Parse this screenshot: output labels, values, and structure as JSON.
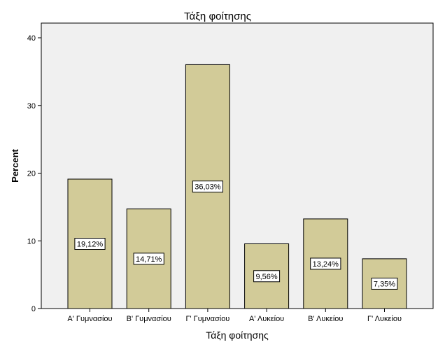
{
  "chart_data": {
    "type": "bar",
    "title": "Τάξη φοίτησης",
    "xlabel": "Τάξη φοίτησης",
    "ylabel": "Percent",
    "categories": [
      "Α' Γυμνασίου",
      "Β' Γυμνασίου",
      "Γ' Γυμνασίου",
      "Α' Λυκείου",
      "Β' Λυκείου",
      "Γ' Λυκείου"
    ],
    "values": [
      19.12,
      14.71,
      36.03,
      9.56,
      13.24,
      7.35
    ],
    "data_labels": [
      "19,12%",
      "14,71%",
      "36,03%",
      "9,56%",
      "13,24%",
      "7,35%"
    ],
    "ylim": [
      0,
      40
    ],
    "yticks": [
      0,
      10,
      20,
      30,
      40
    ],
    "ytick_labels": [
      "0",
      "10",
      "20",
      "30",
      "40"
    ],
    "grid": false,
    "colors": {
      "bar_fill": "#d2cb98",
      "bar_stroke": "#000000",
      "plot_background": "#f0f0f0",
      "label_box_fill": "#ffffff"
    }
  }
}
